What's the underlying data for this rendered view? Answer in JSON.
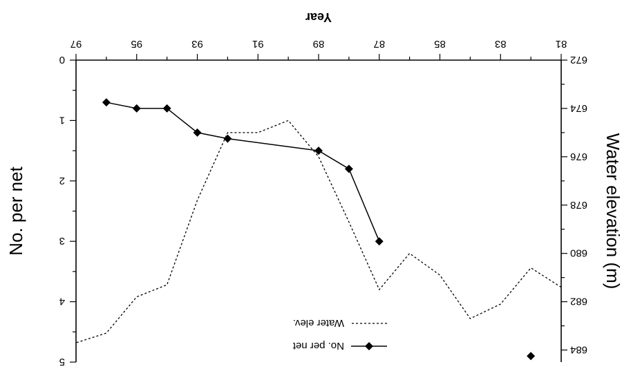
{
  "chart_data": {
    "type": "line",
    "title": "",
    "xlabel": "Year",
    "x_ticks": [
      "81",
      "83",
      "85",
      "87",
      "89",
      "91",
      "93",
      "95",
      "97"
    ],
    "xlim": [
      81,
      97
    ],
    "left_axis": {
      "label": "Water elevation (m)",
      "ticks": [
        "672",
        "674",
        "676",
        "678",
        "680",
        "682",
        "684"
      ],
      "lim": [
        672,
        684.5
      ]
    },
    "right_axis": {
      "label": "No. per net",
      "ticks": [
        "0",
        "1",
        "2",
        "3",
        "4",
        "5"
      ],
      "lim": [
        0,
        5
      ]
    },
    "series": [
      {
        "name": "No. per net",
        "axis": "right",
        "style": "solid-diamond",
        "x": [
          82,
          87,
          88,
          89,
          92,
          93,
          94,
          95,
          96
        ],
        "y": [
          4.9,
          3.0,
          1.8,
          1.5,
          1.3,
          1.2,
          0.8,
          0.8,
          0.7
        ]
      },
      {
        "name": "Water elev.",
        "axis": "left",
        "style": "dotted",
        "x": [
          81,
          82,
          83,
          84,
          85,
          86,
          87,
          88,
          89,
          90,
          91,
          92,
          93,
          94,
          95,
          96,
          97
        ],
        "y": [
          681.4,
          680.6,
          682.1,
          682.7,
          680.9,
          680.0,
          681.5,
          678.7,
          676.0,
          674.5,
          675.0,
          675.0,
          677.8,
          681.3,
          681.8,
          683.3,
          683.7
        ]
      }
    ],
    "legend_position": "top-right",
    "grid": false
  }
}
